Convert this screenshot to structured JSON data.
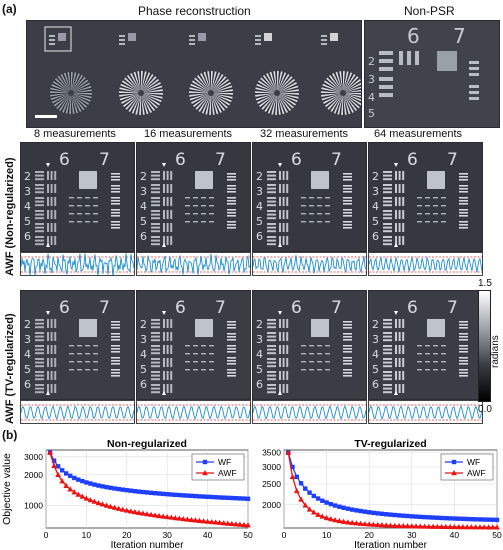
{
  "panel_a": {
    "label": "(a)",
    "header_phase": "Phase reconstruction",
    "header_nonpsr": "Non-PSR",
    "measurement_labels": [
      "8 measurements",
      "16 measurements",
      "32 measurements",
      "64 measurements"
    ],
    "row1_label": "AWF (Non-regularized)",
    "row2_label": "AWF (TV-regularized)",
    "target_numbers": [
      "6",
      "7",
      "2",
      "3",
      "4",
      "5",
      "6"
    ],
    "colorbar": {
      "max": "1.5",
      "min": "0.0",
      "label": "radians"
    }
  },
  "panel_b": {
    "label": "(b)"
  },
  "chart_data": [
    {
      "type": "line",
      "title": "Non-regularized",
      "xlabel": "Iteration number",
      "ylabel": "Objective value",
      "xlim": [
        0,
        50
      ],
      "xticks": [
        0,
        10,
        20,
        30,
        40,
        50
      ],
      "yscale": "log",
      "ylim": [
        600,
        3500
      ],
      "yticks": [
        1000,
        2000,
        3000
      ],
      "grid": true,
      "legend": "top-right",
      "x": [
        1,
        2,
        3,
        4,
        5,
        6,
        7,
        8,
        9,
        10,
        11,
        12,
        13,
        14,
        15,
        16,
        17,
        18,
        19,
        20,
        21,
        22,
        23,
        24,
        25,
        26,
        27,
        28,
        29,
        30,
        31,
        32,
        33,
        34,
        35,
        36,
        37,
        38,
        39,
        40,
        41,
        42,
        43,
        44,
        45,
        46,
        47,
        48,
        49,
        50
      ],
      "series": [
        {
          "name": "WF",
          "color": "#1f3fff",
          "values": [
            3300,
            2750,
            2420,
            2210,
            2060,
            1950,
            1860,
            1790,
            1730,
            1680,
            1640,
            1600,
            1567,
            1538,
            1512,
            1488,
            1466,
            1446,
            1428,
            1411,
            1395,
            1380,
            1366,
            1353,
            1341,
            1329,
            1318,
            1308,
            1298,
            1289,
            1280,
            1271,
            1263,
            1255,
            1248,
            1241,
            1234,
            1227,
            1221,
            1215,
            1209,
            1203,
            1197,
            1192,
            1187,
            1182,
            1177,
            1172,
            1167,
            1162
          ]
        },
        {
          "name": "AWF",
          "color": "#ee1111",
          "values": [
            3300,
            2450,
            2000,
            1730,
            1560,
            1440,
            1350,
            1280,
            1222,
            1172,
            1128,
            1090,
            1056,
            1026,
            998,
            973,
            950,
            929,
            910,
            892,
            876,
            861,
            847,
            834,
            822,
            810,
            799,
            789,
            779,
            770,
            761,
            752,
            744,
            736,
            728,
            721,
            714,
            707,
            700,
            694,
            688,
            682,
            676,
            670,
            664,
            659,
            654,
            649,
            644,
            640
          ]
        }
      ]
    },
    {
      "type": "line",
      "title": "TV-regularized",
      "xlabel": "Iteration number",
      "ylabel": "",
      "xlim": [
        0,
        50
      ],
      "xticks": [
        0,
        10,
        20,
        30,
        40,
        50
      ],
      "yscale": "log",
      "ylim": [
        1560,
        3600
      ],
      "yticks": [
        2000,
        2500,
        3000,
        3500
      ],
      "grid": true,
      "legend": "top-right",
      "x": [
        1,
        2,
        3,
        4,
        5,
        6,
        7,
        8,
        9,
        10,
        11,
        12,
        13,
        14,
        15,
        16,
        17,
        18,
        19,
        20,
        21,
        22,
        23,
        24,
        25,
        26,
        27,
        28,
        29,
        30,
        31,
        32,
        33,
        34,
        35,
        36,
        37,
        38,
        39,
        40,
        41,
        42,
        43,
        44,
        45,
        46,
        47,
        48,
        49,
        50
      ],
      "series": [
        {
          "name": "WF",
          "color": "#1f3fff",
          "values": [
            3500,
            3000,
            2700,
            2520,
            2380,
            2280,
            2200,
            2140,
            2090,
            2050,
            2015,
            1985,
            1960,
            1938,
            1918,
            1900,
            1885,
            1871,
            1858,
            1846,
            1835,
            1825,
            1816,
            1808,
            1800,
            1793,
            1786,
            1780,
            1774,
            1768,
            1763,
            1758,
            1753,
            1749,
            1745,
            1741,
            1737,
            1733,
            1730,
            1727,
            1724,
            1721,
            1718,
            1715,
            1712,
            1710,
            1708,
            1706,
            1704,
            1702
          ]
        },
        {
          "name": "AWF",
          "color": "#ee1111",
          "values": [
            3500,
            2700,
            2320,
            2120,
            1990,
            1905,
            1845,
            1800,
            1765,
            1738,
            1716,
            1698,
            1683,
            1670,
            1659,
            1650,
            1642,
            1635,
            1629,
            1623,
            1618,
            1614,
            1610,
            1606,
            1603,
            1600,
            1597,
            1595,
            1593,
            1591,
            1589,
            1587,
            1586,
            1584,
            1583,
            1582,
            1581,
            1580,
            1579,
            1578,
            1577,
            1576,
            1575,
            1575,
            1574,
            1573,
            1573,
            1572,
            1572,
            1571
          ]
        }
      ]
    }
  ]
}
